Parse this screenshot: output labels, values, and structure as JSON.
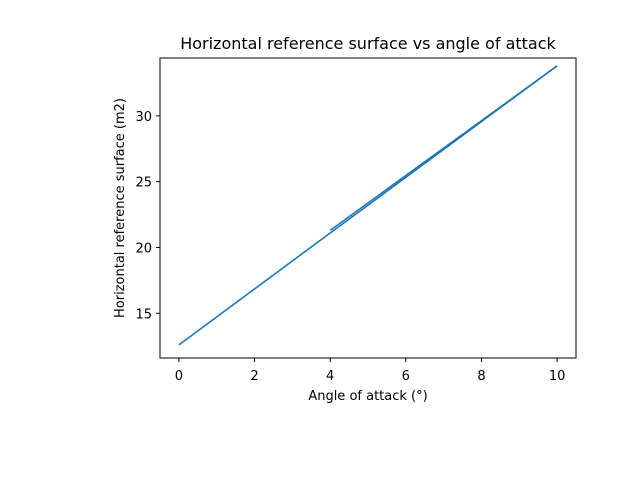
{
  "chart_data": {
    "type": "line",
    "title": "Horizontal reference surface vs angle of attack",
    "xlabel": "Angle of attack (°)",
    "ylabel": "Horizontal reference surface (m2)",
    "xlim": [
      -0.5,
      10.5
    ],
    "ylim": [
      11.6,
      34.4
    ],
    "xticks": [
      0,
      2,
      4,
      6,
      8,
      10
    ],
    "yticks": [
      15,
      20,
      25,
      30
    ],
    "grid": false,
    "series": [
      {
        "name": "",
        "color": "#1f77b4",
        "x": [
          0,
          4,
          10
        ],
        "y": [
          12.6,
          21.1,
          33.8
        ]
      },
      {
        "name": "",
        "color": "#1f77b4",
        "x": [
          4,
          10
        ],
        "y": [
          21.3,
          33.8
        ]
      }
    ]
  }
}
